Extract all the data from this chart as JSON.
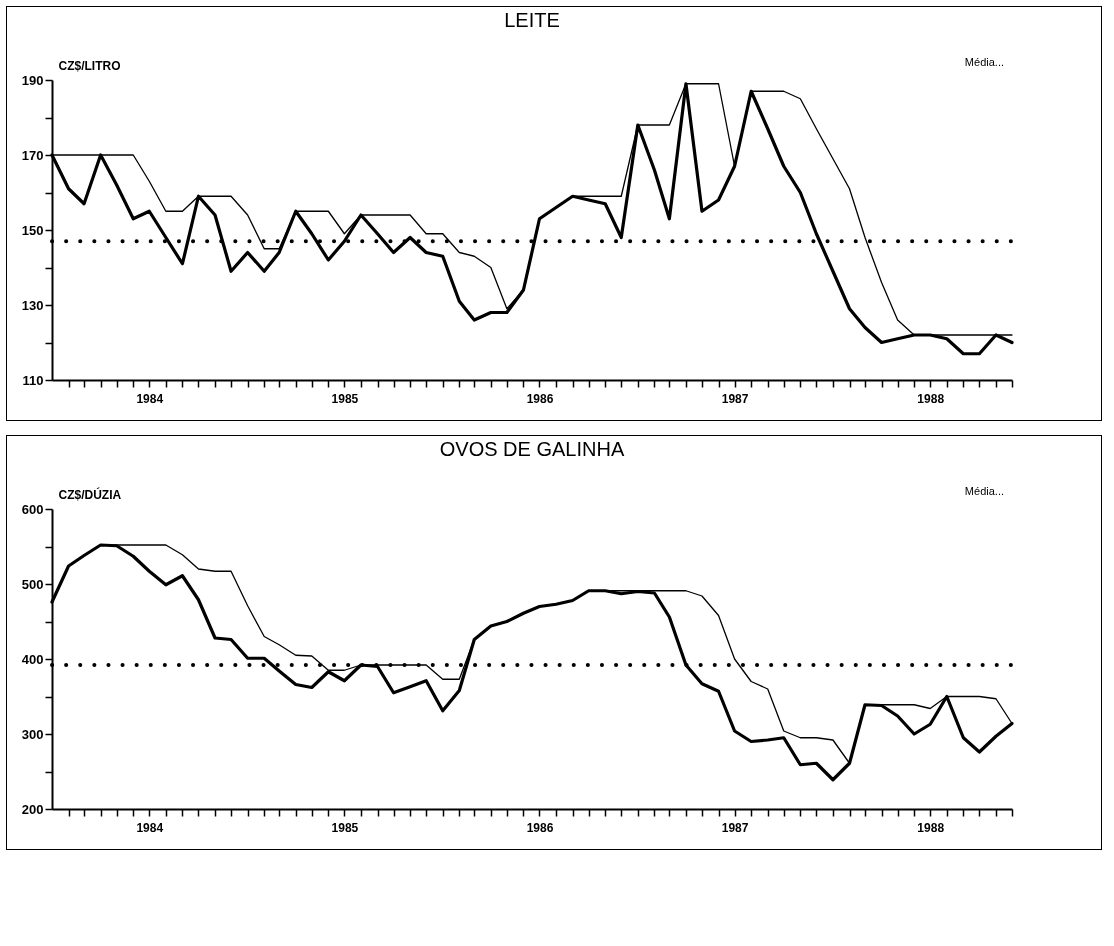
{
  "chart_data": [
    {
      "type": "line",
      "title": "LEITE",
      "ylabel": "CZ$/LITRO",
      "line_style": "solid",
      "marker": "none",
      "x": [
        "1984-01",
        "1984-02",
        "1984-03",
        "1984-04",
        "1984-05",
        "1984-06",
        "1984-07",
        "1984-08",
        "1984-09",
        "1984-10",
        "1984-11",
        "1984-12",
        "1985-01",
        "1985-02",
        "1985-03",
        "1985-04",
        "1985-05",
        "1985-06",
        "1985-07",
        "1985-08",
        "1985-09",
        "1985-10",
        "1985-11",
        "1985-12",
        "1986-01",
        "1986-02",
        "1986-03",
        "1986-04",
        "1986-05",
        "1986-06",
        "1986-07",
        "1986-08",
        "1986-09",
        "1986-10",
        "1986-11",
        "1986-12",
        "1987-01",
        "1987-02",
        "1987-03",
        "1987-04",
        "1987-05",
        "1987-06",
        "1987-07",
        "1987-08",
        "1987-09",
        "1987-10",
        "1987-11",
        "1987-12",
        "1988-01",
        "1988-02",
        "1988-03",
        "1988-04",
        "1988-05",
        "1988-06",
        "1988-07",
        "1988-08",
        "1988-09",
        "1988-10",
        "1988-11",
        "1988-12"
      ],
      "series": [
        {
          "color": "#000000",
          "values": [
            170,
            161,
            157,
            170,
            162,
            153,
            155,
            148,
            141,
            159,
            154,
            139,
            144,
            139,
            144,
            155,
            149,
            142,
            147,
            154,
            149,
            144,
            148,
            144,
            143,
            131,
            126,
            128,
            128,
            134,
            153,
            156,
            159,
            158,
            157,
            148,
            178,
            166,
            153,
            189,
            155,
            158,
            167,
            187,
            177,
            167,
            160,
            149,
            139,
            129,
            124,
            120,
            121,
            122,
            122,
            121,
            117,
            117,
            122,
            120
          ]
        },
        {
          "color": "#000000",
          "values": [
            170,
            170,
            170,
            170,
            170,
            170,
            163,
            155,
            155,
            159,
            159,
            159,
            154,
            145,
            145,
            155,
            155,
            155,
            149,
            154,
            154,
            154,
            154,
            149,
            149,
            144,
            143,
            140,
            129,
            134,
            153,
            156,
            159,
            159,
            159,
            159,
            178,
            178,
            178,
            189,
            189,
            189,
            167,
            187,
            187,
            187,
            185,
            177,
            169,
            161,
            148,
            136,
            126,
            122,
            122,
            122,
            122,
            122,
            122,
            122
          ]
        }
      ],
      "xlim": [
        "1984-01",
        "1988-12"
      ],
      "xticks": [
        {
          "value": "1984-02",
          "label": null
        },
        {
          "value": "1984-03",
          "label": null
        },
        {
          "value": "1984-04",
          "label": null
        },
        {
          "value": "1984-05",
          "label": null
        },
        {
          "value": "1984-06",
          "label": null
        },
        {
          "value": "1984-07",
          "label": "1984"
        },
        {
          "value": "1984-08",
          "label": null
        },
        {
          "value": "1984-09",
          "label": null
        },
        {
          "value": "1984-10",
          "label": null
        },
        {
          "value": "1984-11",
          "label": null
        },
        {
          "value": "1984-12",
          "label": null
        },
        {
          "value": "1985-01",
          "label": null
        },
        {
          "value": "1985-02",
          "label": null
        },
        {
          "value": "1985-03",
          "label": null
        },
        {
          "value": "1985-04",
          "label": null
        },
        {
          "value": "1985-05",
          "label": null
        },
        {
          "value": "1985-06",
          "label": null
        },
        {
          "value": "1985-07",
          "label": "1985"
        },
        {
          "value": "1985-08",
          "label": null
        },
        {
          "value": "1985-09",
          "label": null
        },
        {
          "value": "1985-10",
          "label": null
        },
        {
          "value": "1985-11",
          "label": null
        },
        {
          "value": "1985-12",
          "label": null
        },
        {
          "value": "1986-01",
          "label": null
        },
        {
          "value": "1986-02",
          "label": null
        },
        {
          "value": "1986-03",
          "label": null
        },
        {
          "value": "1986-04",
          "label": null
        },
        {
          "value": "1986-05",
          "label": null
        },
        {
          "value": "1986-06",
          "label": null
        },
        {
          "value": "1986-07",
          "label": "1986"
        },
        {
          "value": "1986-08",
          "label": null
        },
        {
          "value": "1986-09",
          "label": null
        },
        {
          "value": "1986-10",
          "label": null
        },
        {
          "value": "1986-11",
          "label": null
        },
        {
          "value": "1986-12",
          "label": null
        },
        {
          "value": "1987-01",
          "label": null
        },
        {
          "value": "1987-02",
          "label": null
        },
        {
          "value": "1987-03",
          "label": null
        },
        {
          "value": "1987-04",
          "label": null
        },
        {
          "value": "1987-05",
          "label": null
        },
        {
          "value": "1987-06",
          "label": null
        },
        {
          "value": "1987-07",
          "label": "1987"
        },
        {
          "value": "1987-08",
          "label": null
        },
        {
          "value": "1987-09",
          "label": null
        },
        {
          "value": "1987-10",
          "label": null
        },
        {
          "value": "1987-11",
          "label": null
        },
        {
          "value": "1987-12",
          "label": null
        },
        {
          "value": "1988-01",
          "label": null
        },
        {
          "value": "1988-02",
          "label": null
        },
        {
          "value": "1988-03",
          "label": null
        },
        {
          "value": "1988-04",
          "label": null
        },
        {
          "value": "1988-05",
          "label": null
        },
        {
          "value": "1988-06",
          "label": null
        },
        {
          "value": "1988-07",
          "label": "1988"
        },
        {
          "value": "1988-08",
          "label": null
        },
        {
          "value": "1988-09",
          "label": null
        },
        {
          "value": "1988-10",
          "label": null
        },
        {
          "value": "1988-11",
          "label": null
        },
        {
          "value": "1988-12",
          "label": null
        }
      ],
      "ylim": [
        110,
        190
      ],
      "yticks": [
        110,
        {
          "value": 120,
          "label": null
        },
        130,
        {
          "value": 140,
          "label": null
        },
        150,
        {
          "value": 160,
          "label": null
        },
        170,
        {
          "value": 180,
          "label": null
        },
        190
      ],
      "ref_lines": [
        {
          "axis": "y",
          "value": 147,
          "label": "Média...",
          "line_style": "dotted"
        }
      ]
    },
    {
      "type": "line",
      "title": "OVOS DE GALINHA",
      "ylabel": "CZ$/DÚZIA",
      "line_style": "solid",
      "marker": "none",
      "x": [
        "1984-01",
        "1984-02",
        "1984-03",
        "1984-04",
        "1984-05",
        "1984-06",
        "1984-07",
        "1984-08",
        "1984-09",
        "1984-10",
        "1984-11",
        "1984-12",
        "1985-01",
        "1985-02",
        "1985-03",
        "1985-04",
        "1985-05",
        "1985-06",
        "1985-07",
        "1985-08",
        "1985-09",
        "1985-10",
        "1985-11",
        "1985-12",
        "1986-01",
        "1986-02",
        "1986-03",
        "1986-04",
        "1986-05",
        "1986-06",
        "1986-07",
        "1986-08",
        "1986-09",
        "1986-10",
        "1986-11",
        "1986-12",
        "1987-01",
        "1987-02",
        "1987-03",
        "1987-04",
        "1987-05",
        "1987-06",
        "1987-07",
        "1987-08",
        "1987-09",
        "1987-10",
        "1987-11",
        "1987-12",
        "1988-01",
        "1988-02",
        "1988-03",
        "1988-04",
        "1988-05",
        "1988-06",
        "1988-07",
        "1988-08",
        "1988-09",
        "1988-10",
        "1988-11",
        "1988-12"
      ],
      "series": [
        {
          "color": "#000000",
          "values": [
            476,
            524,
            538,
            552,
            551,
            537,
            517,
            499,
            511,
            479,
            428,
            426,
            401,
            401,
            384,
            366,
            362,
            383,
            371,
            392,
            390,
            355,
            363,
            371,
            331,
            358,
            426,
            444,
            450,
            461,
            470,
            473,
            478,
            491,
            491,
            487,
            490,
            488,
            456,
            392,
            367,
            357,
            304,
            290,
            292,
            295,
            259,
            261,
            239,
            261,
            339,
            338,
            324,
            300,
            313,
            350,
            295,
            276,
            297,
            314
          ]
        },
        {
          "color": "#000000",
          "values": [
            476,
            524,
            538,
            552,
            552,
            552,
            552,
            552,
            539,
            520,
            517,
            517,
            471,
            430,
            419,
            405,
            404,
            385,
            385,
            392,
            392,
            392,
            392,
            392,
            373,
            373,
            426,
            444,
            450,
            461,
            470,
            473,
            478,
            491,
            491,
            491,
            491,
            491,
            491,
            491,
            484,
            458,
            400,
            370,
            360,
            304,
            295,
            295,
            292,
            261,
            339,
            339,
            339,
            339,
            334,
            350,
            350,
            350,
            347,
            314
          ]
        }
      ],
      "xlim": [
        "1984-01",
        "1988-12"
      ],
      "xticks": [
        {
          "value": "1984-02",
          "label": null
        },
        {
          "value": "1984-03",
          "label": null
        },
        {
          "value": "1984-04",
          "label": null
        },
        {
          "value": "1984-05",
          "label": null
        },
        {
          "value": "1984-06",
          "label": null
        },
        {
          "value": "1984-07",
          "label": "1984"
        },
        {
          "value": "1984-08",
          "label": null
        },
        {
          "value": "1984-09",
          "label": null
        },
        {
          "value": "1984-10",
          "label": null
        },
        {
          "value": "1984-11",
          "label": null
        },
        {
          "value": "1984-12",
          "label": null
        },
        {
          "value": "1985-01",
          "label": null
        },
        {
          "value": "1985-02",
          "label": null
        },
        {
          "value": "1985-03",
          "label": null
        },
        {
          "value": "1985-04",
          "label": null
        },
        {
          "value": "1985-05",
          "label": null
        },
        {
          "value": "1985-06",
          "label": null
        },
        {
          "value": "1985-07",
          "label": "1985"
        },
        {
          "value": "1985-08",
          "label": null
        },
        {
          "value": "1985-09",
          "label": null
        },
        {
          "value": "1985-10",
          "label": null
        },
        {
          "value": "1985-11",
          "label": null
        },
        {
          "value": "1985-12",
          "label": null
        },
        {
          "value": "1986-01",
          "label": null
        },
        {
          "value": "1986-02",
          "label": null
        },
        {
          "value": "1986-03",
          "label": null
        },
        {
          "value": "1986-04",
          "label": null
        },
        {
          "value": "1986-05",
          "label": null
        },
        {
          "value": "1986-06",
          "label": null
        },
        {
          "value": "1986-07",
          "label": "1986"
        },
        {
          "value": "1986-08",
          "label": null
        },
        {
          "value": "1986-09",
          "label": null
        },
        {
          "value": "1986-10",
          "label": null
        },
        {
          "value": "1986-11",
          "label": null
        },
        {
          "value": "1986-12",
          "label": null
        },
        {
          "value": "1987-01",
          "label": null
        },
        {
          "value": "1987-02",
          "label": null
        },
        {
          "value": "1987-03",
          "label": null
        },
        {
          "value": "1987-04",
          "label": null
        },
        {
          "value": "1987-05",
          "label": null
        },
        {
          "value": "1987-06",
          "label": null
        },
        {
          "value": "1987-07",
          "label": "1987"
        },
        {
          "value": "1987-08",
          "label": null
        },
        {
          "value": "1987-09",
          "label": null
        },
        {
          "value": "1987-10",
          "label": null
        },
        {
          "value": "1987-11",
          "label": null
        },
        {
          "value": "1987-12",
          "label": null
        },
        {
          "value": "1988-01",
          "label": null
        },
        {
          "value": "1988-02",
          "label": null
        },
        {
          "value": "1988-03",
          "label": null
        },
        {
          "value": "1988-04",
          "label": null
        },
        {
          "value": "1988-05",
          "label": null
        },
        {
          "value": "1988-06",
          "label": null
        },
        {
          "value": "1988-07",
          "label": "1988"
        },
        {
          "value": "1988-08",
          "label": null
        },
        {
          "value": "1988-09",
          "label": null
        },
        {
          "value": "1988-10",
          "label": null
        },
        {
          "value": "1988-11",
          "label": null
        },
        {
          "value": "1988-12",
          "label": null
        }
      ],
      "ylim": [
        200,
        600
      ],
      "yticks": [
        200,
        {
          "value": 250,
          "label": null
        },
        300,
        {
          "value": 350,
          "label": null
        },
        400,
        {
          "value": 450,
          "label": null
        },
        500,
        {
          "value": 550,
          "label": null
        },
        600
      ],
      "ref_lines": [
        {
          "axis": "y",
          "value": 392,
          "label": "Média...",
          "line_style": "dotted"
        }
      ]
    }
  ]
}
